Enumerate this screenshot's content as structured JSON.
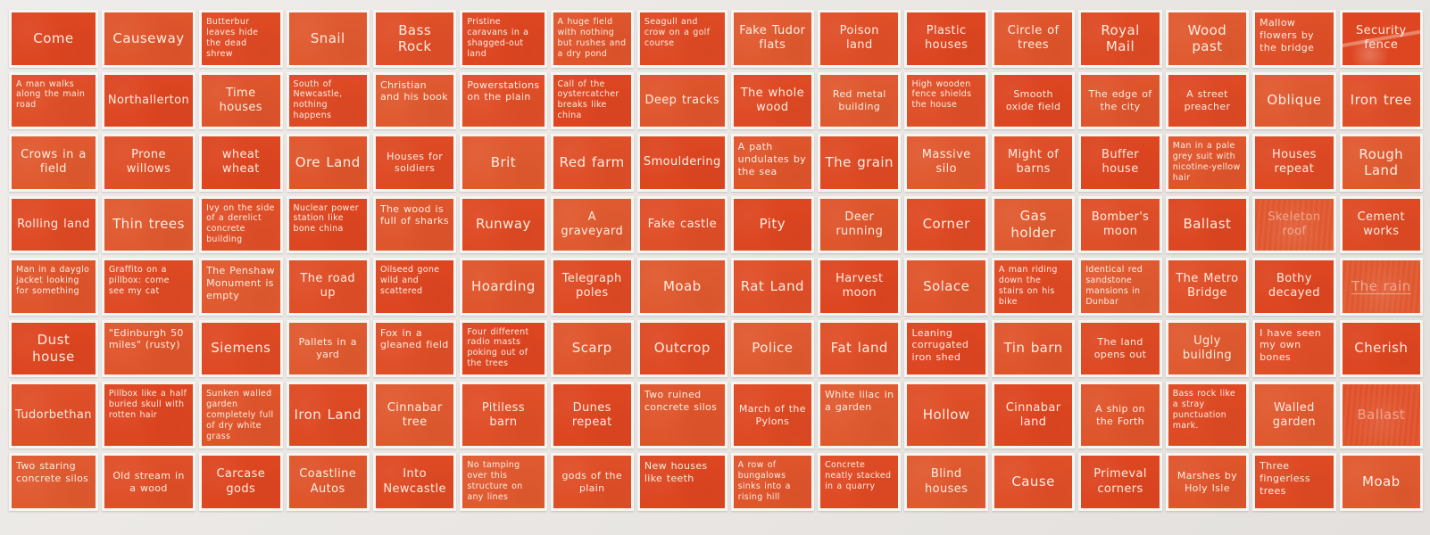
{
  "artwork": {
    "description": "Grid of 128 orange linocut prints with white handwritten captions, 16 columns by 8 rows",
    "card_color": "#e04b27",
    "text_color": "#fff4ea",
    "background_color": "#ebe8e5",
    "columns": 16,
    "rows": [
      {
        "cards": [
          {
            "text": "Come"
          },
          {
            "text": "Causeway"
          },
          {
            "text": "Butterbur leaves hide the dead shrew"
          },
          {
            "text": "Snail"
          },
          {
            "text": "Bass Rock"
          },
          {
            "text": "Pristine caravans in a shagged-out land"
          },
          {
            "text": "A huge field with nothing but rushes and a dry pond"
          },
          {
            "text": "Seagull and crow on a golf course"
          },
          {
            "text": "Fake Tudor flats"
          },
          {
            "text": "Poison land"
          },
          {
            "text": "Plastic houses"
          },
          {
            "text": "Circle of trees"
          },
          {
            "text": "Royal Mail"
          },
          {
            "text": "Wood past"
          },
          {
            "text": "Mallow flowers by the bridge"
          },
          {
            "text": "Security fence",
            "scuffed": true
          }
        ]
      },
      {
        "cards": [
          {
            "text": "A man walks along the main road"
          },
          {
            "text": "Northallerton"
          },
          {
            "text": "Time houses"
          },
          {
            "text": "South of Newcastle, nothing happens"
          },
          {
            "text": "Christian and his book"
          },
          {
            "text": "Powerstations on the plain"
          },
          {
            "text": "Call of the oystercatcher breaks like china"
          },
          {
            "text": "Deep tracks"
          },
          {
            "text": "The whole wood"
          },
          {
            "text": "Red metal building"
          },
          {
            "text": "High wooden fence shields the house"
          },
          {
            "text": "Smooth oxide field"
          },
          {
            "text": "The edge of the city"
          },
          {
            "text": "A street preacher"
          },
          {
            "text": "Oblique"
          },
          {
            "text": "Iron tree"
          }
        ]
      },
      {
        "cards": [
          {
            "text": "Crows in a field"
          },
          {
            "text": "Prone willows"
          },
          {
            "text": "wheat wheat"
          },
          {
            "text": "Ore Land"
          },
          {
            "text": "Houses for soldiers"
          },
          {
            "text": "Brit"
          },
          {
            "text": "Red farm"
          },
          {
            "text": "Smouldering"
          },
          {
            "text": "A path undulates by the sea"
          },
          {
            "text": "The grain"
          },
          {
            "text": "Massive silo"
          },
          {
            "text": "Might of barns"
          },
          {
            "text": "Buffer house"
          },
          {
            "text": "Man in a pale grey suit with nicotine-yellow hair"
          },
          {
            "text": "Houses repeat"
          },
          {
            "text": "Rough Land"
          }
        ]
      },
      {
        "cards": [
          {
            "text": "Rolling land"
          },
          {
            "text": "Thin trees"
          },
          {
            "text": "Ivy on the side of a derelict concrete building"
          },
          {
            "text": "Nuclear power station like bone china"
          },
          {
            "text": "The wood is full of sharks"
          },
          {
            "text": "Runway"
          },
          {
            "text": "A graveyard"
          },
          {
            "text": "Fake castle"
          },
          {
            "text": "Pity"
          },
          {
            "text": "Deer running"
          },
          {
            "text": "Corner"
          },
          {
            "text": "Gas holder"
          },
          {
            "text": "Bomber's moon"
          },
          {
            "text": "Ballast"
          },
          {
            "text": "Skeleton roof",
            "faded": true
          },
          {
            "text": "Cement works"
          }
        ]
      },
      {
        "cards": [
          {
            "text": "Man in a dayglo jacket looking for something"
          },
          {
            "text": "Graffito on a pillbox: come see my cat"
          },
          {
            "text": "The Penshaw Monument is empty"
          },
          {
            "text": "The road up"
          },
          {
            "text": "Oilseed gone wild and scattered"
          },
          {
            "text": "Hoarding"
          },
          {
            "text": "Telegraph poles"
          },
          {
            "text": "Moab"
          },
          {
            "text": "Rat Land"
          },
          {
            "text": "Harvest moon"
          },
          {
            "text": "Solace"
          },
          {
            "text": "A man riding down the stairs on his bike"
          },
          {
            "text": "Identical red sandstone mansions in Dunbar"
          },
          {
            "text": "The Metro Bridge"
          },
          {
            "text": "Bothy decayed"
          },
          {
            "text": "The rain",
            "faded": true,
            "underlined": true
          }
        ]
      },
      {
        "cards": [
          {
            "text": "Dust house"
          },
          {
            "text": "\"Edinburgh 50 miles\" (rusty)"
          },
          {
            "text": "Siemens"
          },
          {
            "text": "Pallets in a yard"
          },
          {
            "text": "Fox in a gleaned field"
          },
          {
            "text": "Four different radio masts poking out of the trees"
          },
          {
            "text": "Scarp"
          },
          {
            "text": "Outcrop"
          },
          {
            "text": "Police"
          },
          {
            "text": "Fat land"
          },
          {
            "text": "Leaning corrugated iron shed"
          },
          {
            "text": "Tin barn"
          },
          {
            "text": "The land opens out"
          },
          {
            "text": "Ugly building"
          },
          {
            "text": "I have seen my own bones"
          },
          {
            "text": "Cherish"
          }
        ]
      },
      {
        "cards": [
          {
            "text": "Tudorbethan"
          },
          {
            "text": "Pillbox like a half buried skull with rotten hair"
          },
          {
            "text": "Sunken walled garden completely full of dry white grass"
          },
          {
            "text": "Iron Land"
          },
          {
            "text": "Cinnabar tree"
          },
          {
            "text": "Pitiless barn"
          },
          {
            "text": "Dunes repeat"
          },
          {
            "text": "Two ruined concrete silos"
          },
          {
            "text": "March of the Pylons"
          },
          {
            "text": "White lilac in a garden"
          },
          {
            "text": "Hollow"
          },
          {
            "text": "Cinnabar land"
          },
          {
            "text": "A ship on the Forth"
          },
          {
            "text": "Bass rock like a stray punctuation mark."
          },
          {
            "text": "Walled garden"
          },
          {
            "text": "Ballast",
            "faded": true
          }
        ]
      },
      {
        "cards": [
          {
            "text": "Two staring concrete silos"
          },
          {
            "text": "Old stream in a wood"
          },
          {
            "text": "Carcase gods"
          },
          {
            "text": "Coastline Autos"
          },
          {
            "text": "Into Newcastle"
          },
          {
            "text": "No tamping over this structure on any lines"
          },
          {
            "text": "gods of the plain"
          },
          {
            "text": "New houses like teeth"
          },
          {
            "text": "A row of bungalows sinks into a rising hill"
          },
          {
            "text": "Concrete neatly stacked in a quarry"
          },
          {
            "text": "Blind houses"
          },
          {
            "text": "Cause"
          },
          {
            "text": "Primeval corners"
          },
          {
            "text": "Marshes by Holy Isle"
          },
          {
            "text": "Three fingerless trees"
          },
          {
            "text": "Moab"
          }
        ]
      }
    ]
  }
}
